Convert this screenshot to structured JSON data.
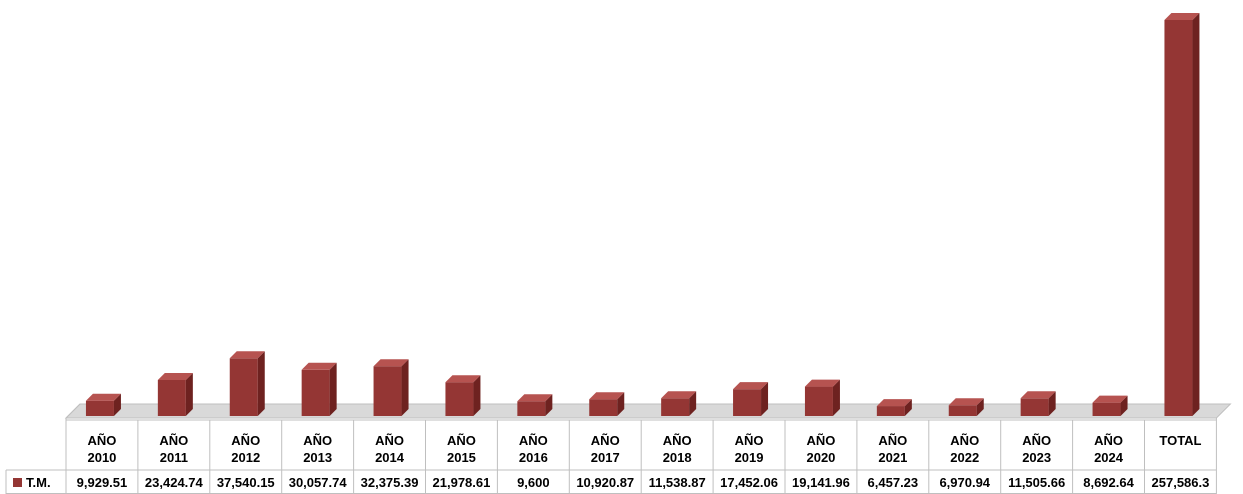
{
  "chart_data": {
    "type": "bar",
    "categories": [
      [
        "AÑO",
        "2010"
      ],
      [
        "AÑO",
        "2011"
      ],
      [
        "AÑO",
        "2012"
      ],
      [
        "AÑO",
        "2013"
      ],
      [
        "AÑO",
        "2014"
      ],
      [
        "AÑO",
        "2015"
      ],
      [
        "AÑO",
        "2016"
      ],
      [
        "AÑO",
        "2017"
      ],
      [
        "AÑO",
        "2018"
      ],
      [
        "AÑO",
        "2019"
      ],
      [
        "AÑO",
        "2020"
      ],
      [
        "AÑO",
        "2021"
      ],
      [
        "AÑO",
        "2022"
      ],
      [
        "AÑO",
        "2023"
      ],
      [
        "AÑO",
        "2024"
      ],
      [
        "TOTAL"
      ]
    ],
    "series": [
      {
        "name": "T.M.",
        "values": [
          9929.51,
          23424.74,
          37540.15,
          30057.74,
          32375.39,
          21978.61,
          9600,
          10920.87,
          11538.87,
          17452.06,
          19141.96,
          6457.23,
          6970.94,
          11505.66,
          8692.64,
          257586.3
        ],
        "labels": [
          "9,929.51",
          "23,424.74",
          "37,540.15",
          "30,057.74",
          "32,375.39",
          "21,978.61",
          "9,600",
          "10,920.87",
          "11,538.87",
          "17,452.06",
          "19,141.96",
          "6,457.23",
          "6,970.94",
          "11,505.66",
          "8,692.64",
          "257,586.3"
        ]
      }
    ],
    "ylim": [
      0,
      257586.3
    ],
    "grid": false,
    "legend": "in data table (left)",
    "data_table": true,
    "colors": {
      "bar_front": "#943634",
      "bar_side": "#6e2220",
      "bar_top": "#b65350",
      "floor": "#d9d9d9",
      "grid_line": "#bfbfbf"
    }
  }
}
